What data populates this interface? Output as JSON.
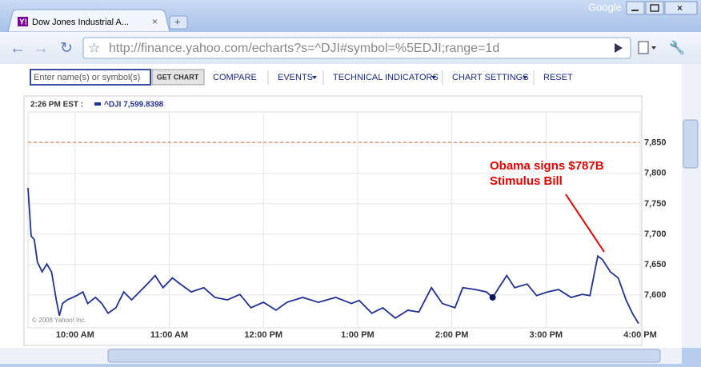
{
  "browser": {
    "tab_title": "Dow Jones Industrial A...",
    "brand": "Google",
    "url": "http://finance.yahoo.com/echarts?s=^DJI#symbol=%5EDJI;range=1d"
  },
  "toolbar": {
    "search_placeholder": "Enter name(s) or symbol(s)",
    "button": "GET CHART",
    "menu": [
      "COMPARE",
      "EVENTS",
      "TECHNICAL INDICATORS",
      "CHART SETTINGS",
      "RESET"
    ]
  },
  "chart_data": {
    "type": "line",
    "header_time": "2:26 PM EST :",
    "header_quote": "^DJI 7,599.8398",
    "annotation": [
      "Obama signs $787B",
      "Stimulus Bill"
    ],
    "copyright": "© 2008 Yahoo! Inc.",
    "xlim": [
      0,
      390
    ],
    "xticks": [
      {
        "value": 30,
        "label": "10:00 AM"
      },
      {
        "value": 90,
        "label": "11:00 AM"
      },
      {
        "value": 150,
        "label": "12:00 PM"
      },
      {
        "value": 210,
        "label": "1:00 PM"
      },
      {
        "value": 270,
        "label": "2:00 PM"
      },
      {
        "value": 330,
        "label": "3:00 PM"
      },
      {
        "value": 390,
        "label": "4:00 PM"
      }
    ],
    "ylim": [
      7546,
      7901
    ],
    "yticks": [
      {
        "value": 7600,
        "label": "7,600"
      },
      {
        "value": 7650,
        "label": "7,650"
      },
      {
        "value": 7700,
        "label": "7,700"
      },
      {
        "value": 7750,
        "label": "7,750"
      },
      {
        "value": 7800,
        "label": "7,800"
      },
      {
        "value": 7850,
        "label": "7,850"
      }
    ],
    "grid": true,
    "reference_value": 7851,
    "reference_color": "#e07040",
    "marker_index": 51,
    "series": [
      {
        "name": "^DJI",
        "color": "#22318f",
        "x": [
          0,
          2,
          4,
          6,
          9,
          12,
          15,
          18,
          20,
          22,
          25,
          31,
          35,
          38,
          43,
          47,
          51,
          56,
          61,
          66,
          71,
          76,
          81,
          86,
          92,
          97,
          104,
          112,
          119,
          127,
          135,
          142,
          150,
          158,
          165,
          175,
          185,
          196,
          206,
          211,
          219,
          226,
          234,
          242,
          249,
          257,
          264,
          272,
          277,
          285,
          292,
          296,
          305,
          310,
          318,
          324,
          331,
          338,
          346,
          353,
          358,
          363,
          366,
          371,
          376,
          381,
          385,
          389
        ],
        "values": [
          7776,
          7697,
          7691,
          7654,
          7638,
          7651,
          7638,
          7592,
          7566,
          7586,
          7592,
          7599,
          7605,
          7586,
          7596,
          7586,
          7570,
          7579,
          7605,
          7592,
          7605,
          7618,
          7632,
          7612,
          7628,
          7618,
          7605,
          7612,
          7596,
          7592,
          7601,
          7579,
          7588,
          7575,
          7588,
          7596,
          7588,
          7596,
          7586,
          7591,
          7570,
          7579,
          7562,
          7575,
          7572,
          7612,
          7586,
          7579,
          7612,
          7609,
          7605,
          7596,
          7632,
          7612,
          7618,
          7599,
          7605,
          7609,
          7596,
          7601,
          7599,
          7664,
          7658,
          7638,
          7628,
          7592,
          7570,
          7553
        ]
      }
    ]
  }
}
